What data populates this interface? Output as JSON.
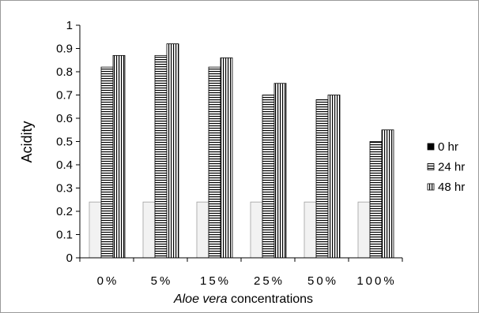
{
  "chart_data": {
    "type": "bar",
    "title": "",
    "categories": [
      "0%",
      "5%",
      "15%",
      "25%",
      "50%",
      "100%"
    ],
    "series": [
      {
        "name": "0 hr",
        "values": [
          0.24,
          0.24,
          0.24,
          0.24,
          0.24,
          0.24
        ],
        "color": "#f2f2f2",
        "legend_color": "#000000"
      },
      {
        "name": "24 hr",
        "values": [
          0.82,
          0.87,
          0.82,
          0.7,
          0.68,
          0.5
        ],
        "color": "#000000"
      },
      {
        "name": "48 hr",
        "values": [
          0.87,
          0.92,
          0.86,
          0.75,
          0.7,
          0.55
        ],
        "color": "#000000"
      }
    ],
    "xlabel": "Aloe vera concentrations",
    "xlabel_italic": "Aloe vera",
    "ylabel": "Acidity",
    "ylim": [
      0,
      1
    ],
    "yticks": [
      "0",
      "0.1",
      "0.2",
      "0.3",
      "0.4",
      "0.5",
      "0.6",
      "0.7",
      "0.8",
      "0.9",
      "1"
    ],
    "grid": false,
    "legend": "right"
  }
}
